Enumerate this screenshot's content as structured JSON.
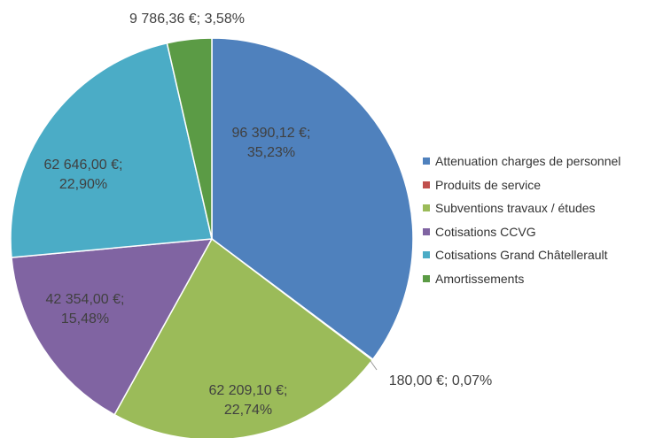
{
  "chart_data": {
    "type": "pie",
    "categories": [
      "Attenuation charges de personnel",
      "Produits de service",
      "Subventions travaux / études",
      "Cotisations CCVG",
      "Cotisations Grand Châtellerault",
      "Amortissements"
    ],
    "values": [
      96390.12,
      180.0,
      62209.1,
      42354.0,
      62646.0,
      9786.36
    ],
    "value_labels": [
      "96 390,12 €; 35,23%",
      "180,00 €; 0,07%",
      "62 209,10 €; 22,74%",
      "42 354,00 €; 15,48%",
      "62 646,00 €; 22,90%",
      "9 786,36 €; 3,58%"
    ],
    "colors": [
      "#4f81bd",
      "#c0504d",
      "#9bbb59",
      "#8064a2",
      "#4bacc6",
      "#5b9b45"
    ],
    "legend": "right"
  }
}
